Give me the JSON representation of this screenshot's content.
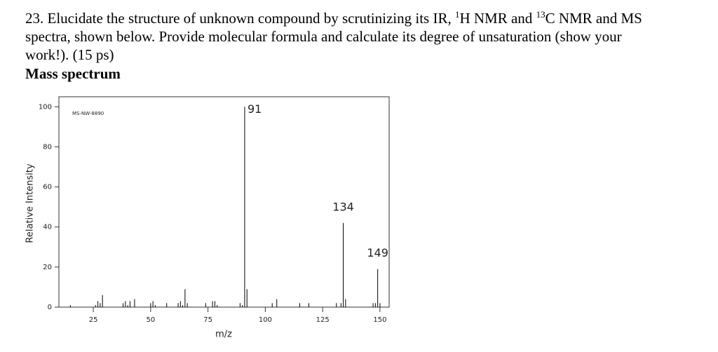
{
  "question": {
    "line1": [
      "23. Elucidate the structure of unknown compound by scrutinizing its IR, ",
      "1",
      "H NMR and ",
      "13",
      "C NMR and MS"
    ],
    "line2": "spectra, shown below. Provide molecular formula and calculate its degree of unsaturation (show your",
    "line3": "work!). (15 ps)",
    "heading": "Mass spectrum"
  },
  "chart_data": {
    "type": "spectrum",
    "id_label": "MS-NW-8890",
    "xlabel": "m/z",
    "ylabel": "Relative Intensity",
    "xlim": [
      10,
      154
    ],
    "ylim": [
      0,
      105
    ],
    "xticks": [
      25,
      50,
      75,
      100,
      125,
      150
    ],
    "yticks": [
      0,
      20,
      40,
      60,
      80,
      100
    ],
    "color": "#000000",
    "x": [
      15,
      26,
      27,
      28,
      29,
      38,
      39,
      40,
      41,
      43,
      50,
      51,
      52,
      57,
      62,
      63,
      64,
      65,
      66,
      74,
      77,
      78,
      79,
      89,
      90,
      91,
      92,
      103,
      105,
      115,
      119,
      131,
      133,
      134,
      135,
      147,
      148,
      149,
      150
    ],
    "values": [
      1,
      1,
      3,
      2,
      6,
      2,
      3,
      1,
      3,
      4,
      2,
      3,
      1,
      2,
      2,
      3,
      1,
      9,
      2,
      2,
      3,
      3,
      1,
      2,
      1,
      100,
      9,
      2,
      4,
      2,
      2,
      2,
      2,
      42,
      4,
      2,
      2,
      19,
      2
    ],
    "peak_labels": [
      "91",
      "134",
      "149"
    ]
  }
}
